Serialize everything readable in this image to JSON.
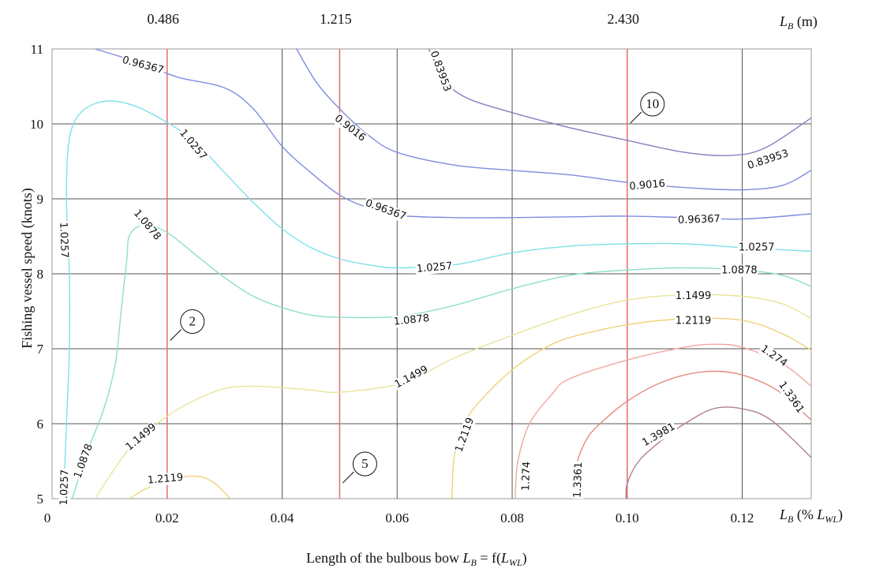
{
  "chart_data": {
    "type": "contour",
    "title": "",
    "xlabel": "Length of the bulbous bow",
    "xlabel_math": {
      "symbol": "L",
      "sub": "B",
      "rest": " = f(",
      "arg_symbol": "L",
      "arg_sub": "WL",
      "close": ")"
    },
    "ylabel": "Fishing vessel speed (knots)",
    "x_unit_label": {
      "symbol": "L",
      "sub": "B",
      "pre": " (% ",
      "arg_symbol": "L",
      "arg_sub": "WL",
      "post": ")"
    },
    "top_unit_label": {
      "symbol": "L",
      "sub": "B",
      "post": " (m)"
    },
    "xlim": [
      0,
      0.132
    ],
    "ylim": [
      5,
      11
    ],
    "x_ticks": [
      "0",
      "0.02",
      "0.04",
      "0.06",
      "0.08",
      "0.10",
      "0.12"
    ],
    "x_tick_values": [
      0,
      0.02,
      0.04,
      0.06,
      0.08,
      0.1,
      0.12
    ],
    "y_ticks": [
      "5",
      "6",
      "7",
      "8",
      "9",
      "10",
      "11"
    ],
    "y_tick_values": [
      5,
      6,
      7,
      8,
      9,
      10,
      11
    ],
    "top_ticks": [
      {
        "label": "0.486",
        "x": 0.02
      },
      {
        "label": "1.215",
        "x": 0.05
      },
      {
        "label": "2.430",
        "x": 0.1
      }
    ],
    "red_lines": [
      0.02,
      0.05,
      0.1
    ],
    "callouts": [
      {
        "label": "2",
        "x": 0.02,
        "y": 7.3
      },
      {
        "label": "5",
        "x": 0.05,
        "y": 5.4
      },
      {
        "label": "10",
        "x": 0.1,
        "y": 10.2
      }
    ],
    "contours": [
      {
        "level": "0.83953",
        "color": "#8a7fbf",
        "points": [
          [
            0.0655,
            11
          ],
          [
            0.068,
            10.6
          ],
          [
            0.072,
            10.35
          ],
          [
            0.08,
            10.15
          ],
          [
            0.09,
            9.95
          ],
          [
            0.1,
            9.78
          ],
          [
            0.11,
            9.62
          ],
          [
            0.118,
            9.58
          ],
          [
            0.124,
            9.68
          ],
          [
            0.132,
            10.08
          ]
        ],
        "labels": [
          {
            "x": 0.0675,
            "y": 10.7,
            "angle": 70
          },
          {
            "x": 0.1245,
            "y": 9.52,
            "angle": -18
          }
        ]
      },
      {
        "level": "0.9016",
        "color": "#7f8ce0",
        "points": [
          [
            0.0425,
            11
          ],
          [
            0.046,
            10.55
          ],
          [
            0.05,
            10.2
          ],
          [
            0.055,
            9.85
          ],
          [
            0.06,
            9.62
          ],
          [
            0.07,
            9.45
          ],
          [
            0.08,
            9.38
          ],
          [
            0.09,
            9.32
          ],
          [
            0.1,
            9.22
          ],
          [
            0.11,
            9.15
          ],
          [
            0.12,
            9.12
          ],
          [
            0.127,
            9.18
          ],
          [
            0.132,
            9.38
          ]
        ],
        "labels": [
          {
            "x": 0.0518,
            "y": 9.94,
            "angle": 38
          },
          {
            "x": 0.1035,
            "y": 9.18,
            "angle": -5
          }
        ]
      },
      {
        "level": "0.96367",
        "color": "#7f8ce0",
        "points": [
          [
            0.0075,
            11
          ],
          [
            0.015,
            10.82
          ],
          [
            0.022,
            10.62
          ],
          [
            0.03,
            10.48
          ],
          [
            0.035,
            10.2
          ],
          [
            0.04,
            9.7
          ],
          [
            0.045,
            9.35
          ],
          [
            0.05,
            9.05
          ],
          [
            0.055,
            8.88
          ],
          [
            0.06,
            8.78
          ],
          [
            0.07,
            8.75
          ],
          [
            0.08,
            8.75
          ],
          [
            0.09,
            8.76
          ],
          [
            0.1,
            8.77
          ],
          [
            0.11,
            8.75
          ],
          [
            0.12,
            8.73
          ],
          [
            0.132,
            8.8
          ]
        ],
        "labels": [
          {
            "x": 0.0158,
            "y": 10.78,
            "angle": 15
          },
          {
            "x": 0.058,
            "y": 8.85,
            "angle": 20
          },
          {
            "x": 0.1125,
            "y": 8.72,
            "angle": -2
          }
        ]
      },
      {
        "level": "1.0257",
        "color": "#7fe0e8",
        "points": [
          [
            0.002,
            5
          ],
          [
            0.0025,
            6
          ],
          [
            0.003,
            7
          ],
          [
            0.003,
            8
          ],
          [
            0.0025,
            9
          ],
          [
            0.003,
            9.8
          ],
          [
            0.005,
            10.15
          ],
          [
            0.009,
            10.3
          ],
          [
            0.014,
            10.25
          ],
          [
            0.02,
            10.02
          ],
          [
            0.025,
            9.75
          ],
          [
            0.03,
            9.35
          ],
          [
            0.035,
            8.95
          ],
          [
            0.04,
            8.6
          ],
          [
            0.045,
            8.35
          ],
          [
            0.05,
            8.2
          ],
          [
            0.055,
            8.12
          ],
          [
            0.06,
            8.08
          ],
          [
            0.07,
            8.12
          ],
          [
            0.08,
            8.28
          ],
          [
            0.09,
            8.37
          ],
          [
            0.1,
            8.4
          ],
          [
            0.11,
            8.4
          ],
          [
            0.12,
            8.35
          ],
          [
            0.132,
            8.3
          ]
        ],
        "labels": [
          {
            "x": 0.002,
            "y": 8.45,
            "angle": 88
          },
          {
            "x": 0.0245,
            "y": 9.72,
            "angle": 50
          },
          {
            "x": 0.0665,
            "y": 8.08,
            "angle": -5
          },
          {
            "x": 0.1225,
            "y": 8.35,
            "angle": 0
          },
          {
            "x": 0.0022,
            "y": 5.15,
            "angle": -88
          }
        ]
      },
      {
        "level": "1.0878",
        "color": "#8ce0c8",
        "points": [
          [
            0.0035,
            5
          ],
          [
            0.006,
            5.6
          ],
          [
            0.009,
            6.2
          ],
          [
            0.011,
            6.8
          ],
          [
            0.012,
            7.5
          ],
          [
            0.013,
            8.2
          ],
          [
            0.0135,
            8.52
          ],
          [
            0.016,
            8.65
          ],
          [
            0.02,
            8.55
          ],
          [
            0.025,
            8.25
          ],
          [
            0.03,
            7.95
          ],
          [
            0.035,
            7.7
          ],
          [
            0.04,
            7.55
          ],
          [
            0.045,
            7.45
          ],
          [
            0.05,
            7.42
          ],
          [
            0.06,
            7.43
          ],
          [
            0.07,
            7.58
          ],
          [
            0.08,
            7.8
          ],
          [
            0.09,
            7.98
          ],
          [
            0.1,
            8.05
          ],
          [
            0.11,
            8.08
          ],
          [
            0.12,
            8.05
          ],
          [
            0.127,
            7.98
          ],
          [
            0.132,
            7.83
          ]
        ],
        "labels": [
          {
            "x": 0.0165,
            "y": 8.65,
            "angle": 50
          },
          {
            "x": 0.0625,
            "y": 7.38,
            "angle": -6
          },
          {
            "x": 0.1195,
            "y": 8.04,
            "angle": 0
          },
          {
            "x": 0.0055,
            "y": 5.5,
            "angle": -70
          }
        ]
      },
      {
        "level": "1.1499",
        "color": "#e8e49c",
        "points": [
          [
            0.0075,
            5
          ],
          [
            0.01,
            5.3
          ],
          [
            0.014,
            5.72
          ],
          [
            0.02,
            6.1
          ],
          [
            0.025,
            6.32
          ],
          [
            0.03,
            6.47
          ],
          [
            0.035,
            6.5
          ],
          [
            0.04,
            6.48
          ],
          [
            0.045,
            6.45
          ],
          [
            0.05,
            6.42
          ],
          [
            0.06,
            6.52
          ],
          [
            0.065,
            6.68
          ],
          [
            0.07,
            6.88
          ],
          [
            0.08,
            7.18
          ],
          [
            0.09,
            7.45
          ],
          [
            0.1,
            7.65
          ],
          [
            0.11,
            7.72
          ],
          [
            0.12,
            7.7
          ],
          [
            0.127,
            7.6
          ],
          [
            0.132,
            7.4
          ]
        ],
        "labels": [
          {
            "x": 0.0155,
            "y": 5.82,
            "angle": -40
          },
          {
            "x": 0.0625,
            "y": 6.62,
            "angle": -28
          },
          {
            "x": 0.1115,
            "y": 7.7,
            "angle": 0
          }
        ]
      },
      {
        "level": "1.2119",
        "color": "#f0d27c",
        "points": [
          [
            0.0135,
            5
          ],
          [
            0.016,
            5.12
          ],
          [
            0.02,
            5.25
          ],
          [
            0.025,
            5.3
          ],
          [
            0.028,
            5.22
          ],
          [
            0.031,
            5.0
          ]
        ],
        "labels": [
          {
            "x": 0.0197,
            "y": 5.26,
            "angle": -5
          }
        ]
      },
      {
        "level": "1.2119",
        "color": "#f0d27c",
        "points": [
          [
            0.0695,
            5
          ],
          [
            0.07,
            5.6
          ],
          [
            0.072,
            6.05
          ],
          [
            0.075,
            6.35
          ],
          [
            0.08,
            6.72
          ],
          [
            0.085,
            6.98
          ],
          [
            0.09,
            7.15
          ],
          [
            0.1,
            7.32
          ],
          [
            0.11,
            7.4
          ],
          [
            0.12,
            7.38
          ],
          [
            0.127,
            7.2
          ],
          [
            0.132,
            6.98
          ]
        ],
        "labels": [
          {
            "x": 0.0718,
            "y": 5.85,
            "angle": -70
          },
          {
            "x": 0.1115,
            "y": 7.37,
            "angle": 0
          }
        ]
      },
      {
        "level": "1.274",
        "color": "#f0a8a0",
        "points": [
          [
            0.0805,
            5
          ],
          [
            0.081,
            5.5
          ],
          [
            0.083,
            6.0
          ],
          [
            0.087,
            6.4
          ],
          [
            0.09,
            6.6
          ],
          [
            0.1,
            6.85
          ],
          [
            0.11,
            7.02
          ],
          [
            0.115,
            7.06
          ],
          [
            0.12,
            7.02
          ],
          [
            0.127,
            6.8
          ],
          [
            0.132,
            6.5
          ]
        ],
        "labels": [
          {
            "x": 0.0825,
            "y": 5.3,
            "angle": -88
          },
          {
            "x": 0.1255,
            "y": 6.9,
            "angle": 35
          }
        ]
      },
      {
        "level": "1.3361",
        "color": "#e88a80",
        "points": [
          [
            0.0908,
            5
          ],
          [
            0.091,
            5.4
          ],
          [
            0.093,
            5.8
          ],
          [
            0.096,
            6.05
          ],
          [
            0.1,
            6.3
          ],
          [
            0.105,
            6.52
          ],
          [
            0.11,
            6.65
          ],
          [
            0.115,
            6.7
          ],
          [
            0.12,
            6.65
          ],
          [
            0.126,
            6.45
          ],
          [
            0.132,
            6.05
          ]
        ],
        "labels": [
          {
            "x": 0.0915,
            "y": 5.25,
            "angle": -88
          },
          {
            "x": 0.1285,
            "y": 6.35,
            "angle": 55
          }
        ]
      },
      {
        "level": "1.3981",
        "color": "#b0808a",
        "points": [
          [
            0.0998,
            5
          ],
          [
            0.1,
            5.2
          ],
          [
            0.102,
            5.5
          ],
          [
            0.106,
            5.78
          ],
          [
            0.11,
            6.0
          ],
          [
            0.115,
            6.2
          ],
          [
            0.12,
            6.2
          ],
          [
            0.125,
            6.05
          ],
          [
            0.132,
            5.55
          ]
        ],
        "labels": [
          {
            "x": 0.1055,
            "y": 5.85,
            "angle": -30
          }
        ]
      }
    ]
  }
}
